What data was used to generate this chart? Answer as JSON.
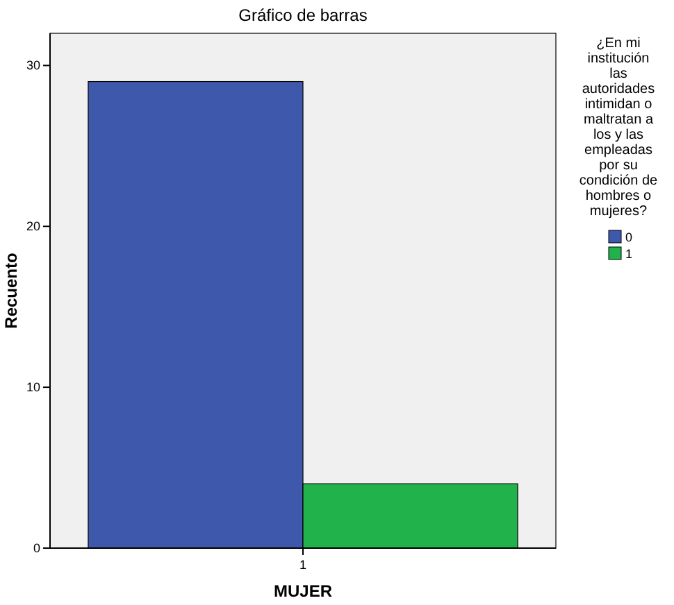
{
  "chart_data": {
    "type": "bar",
    "title": "Gráfico de barras",
    "xlabel": "MUJER",
    "ylabel": "Recuento",
    "legend_title": "¿En mi institución las autoridades intimidan o maltratan a los y las empleadas por su condición de hombres o mujeres?",
    "categories": [
      "1"
    ],
    "series": [
      {
        "name": "0",
        "color": "#3e58ac",
        "values": [
          29
        ]
      },
      {
        "name": "1",
        "color": "#22b24c",
        "values": [
          4
        ]
      }
    ],
    "ylim": [
      0,
      32
    ],
    "yticks": [
      0,
      10,
      20,
      30
    ],
    "grid": false,
    "legend": "right"
  }
}
